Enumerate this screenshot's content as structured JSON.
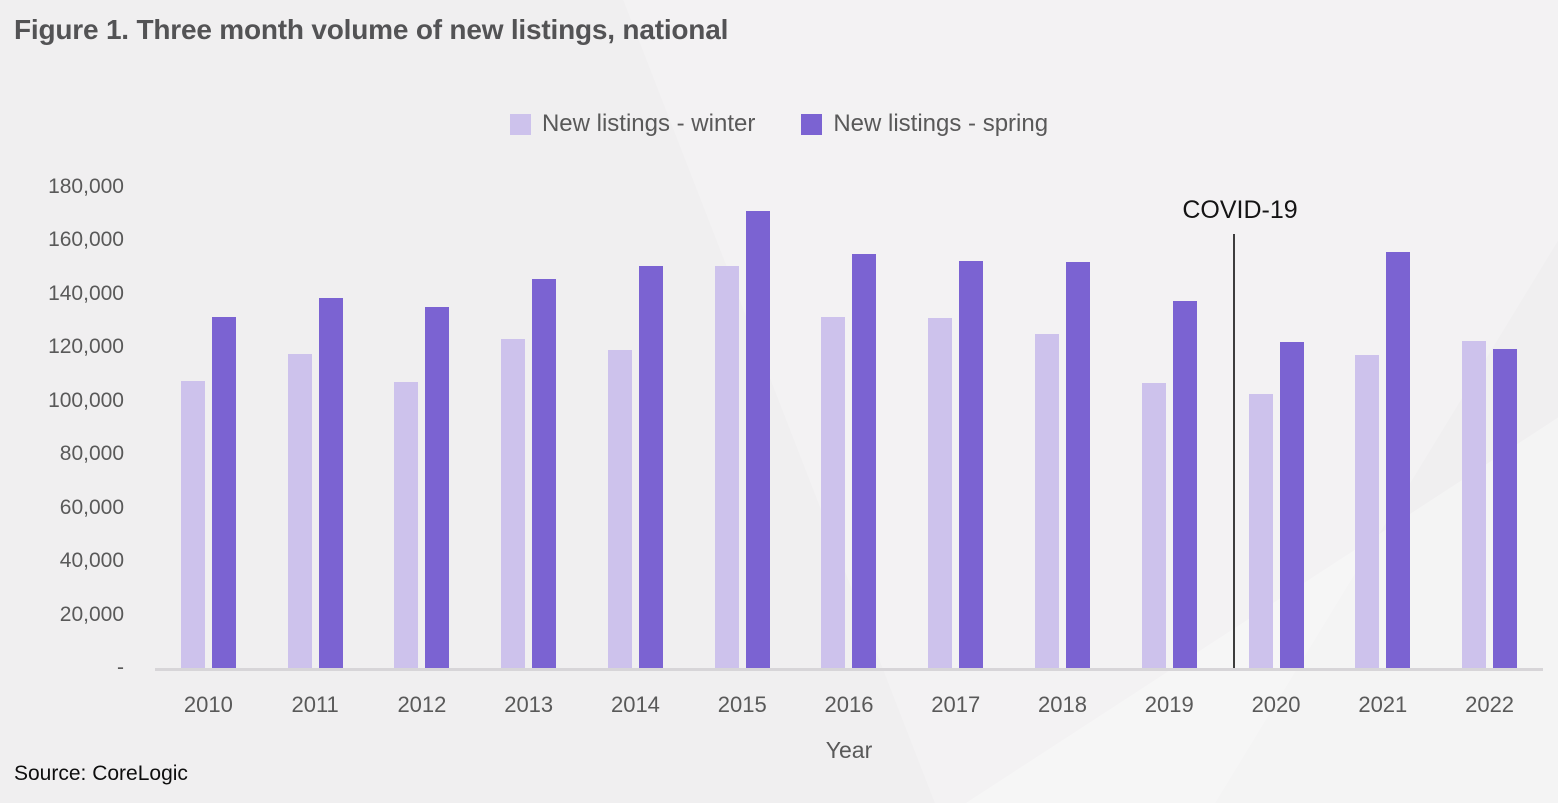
{
  "figure": {
    "title": "Figure 1. Three month volume of new listings, national",
    "source": "Source: CoreLogic"
  },
  "legend": {
    "items": [
      {
        "label": "New listings - winter",
        "color": "#cdc2ec"
      },
      {
        "label": "New listings - spring",
        "color": "#7b63d2"
      }
    ]
  },
  "chart_data": {
    "type": "bar",
    "title": "Figure 1. Three month volume of new listings, national",
    "xlabel": "Year",
    "ylabel": "",
    "ylim": [
      0,
      180000
    ],
    "ytick_step": 20000,
    "ytick_labels": [
      "-",
      "20,000",
      "40,000",
      "60,000",
      "80,000",
      "100,000",
      "120,000",
      "140,000",
      "160,000",
      "180,000"
    ],
    "grid": false,
    "legend_position": "top-center",
    "categories": [
      "2010",
      "2011",
      "2012",
      "2013",
      "2014",
      "2015",
      "2016",
      "2017",
      "2018",
      "2019",
      "2020",
      "2021",
      "2022"
    ],
    "series": [
      {
        "name": "New listings - winter",
        "color": "#cdc2ec",
        "values": [
          107500,
          117500,
          107000,
          123000,
          119000,
          150500,
          131500,
          131000,
          125000,
          106500,
          102500,
          117000,
          122500
        ]
      },
      {
        "name": "New listings - spring",
        "color": "#7b63d2",
        "values": [
          131500,
          138500,
          135000,
          145500,
          150500,
          171000,
          155000,
          152500,
          152000,
          137500,
          122000,
          155500,
          119500
        ]
      }
    ],
    "annotations": [
      {
        "type": "vline-label",
        "text": "COVID-19",
        "between": [
          "2019",
          "2020"
        ]
      }
    ]
  }
}
